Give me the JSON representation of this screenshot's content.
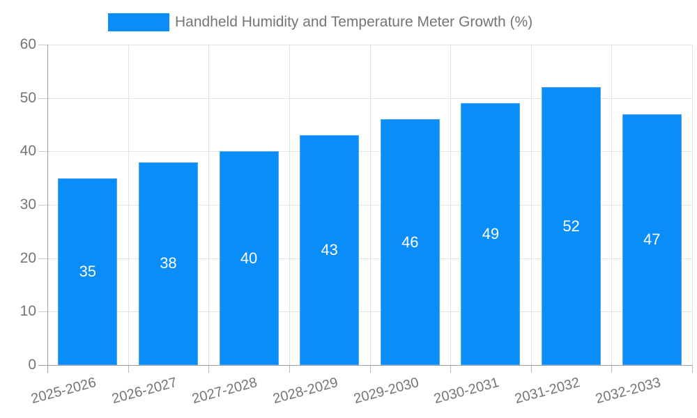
{
  "chart_data": {
    "type": "bar",
    "title": "Handheld Humidity and Temperature Meter Growth (%)",
    "categories": [
      "2025-2026",
      "2026-2027",
      "2027-2028",
      "2028-2029",
      "2029-2030",
      "2030-2031",
      "2031-2032",
      "2032-2033"
    ],
    "values": [
      35,
      38,
      40,
      43,
      46,
      49,
      52,
      47
    ],
    "xlabel": "",
    "ylabel": "",
    "ylim": [
      0,
      60
    ],
    "yticks": [
      0,
      10,
      20,
      30,
      40,
      50,
      60
    ],
    "grid": true,
    "legend_position": "top",
    "legend": {
      "label": "Handheld Humidity and Temperature Meter Growth (%)",
      "swatch_color": "#0A8DF8"
    },
    "colors": {
      "bar": "#0A8DF8",
      "bar_border": "#4FA6F2",
      "value_label": "#FFFFFF",
      "axis_text": "#757575",
      "grid_line": "#E2E2E2",
      "axis_line": "#9E9E9E"
    }
  }
}
